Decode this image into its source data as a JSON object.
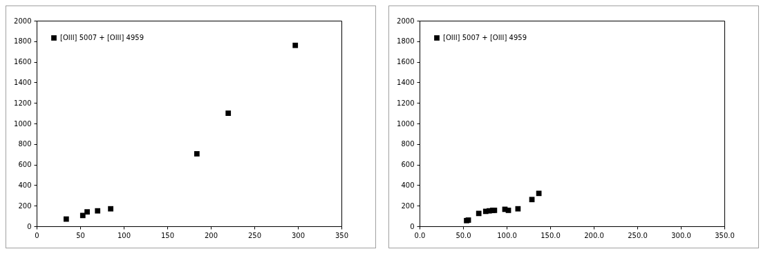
{
  "chart_data": [
    {
      "type": "scatter",
      "marker": "square",
      "legend": "top left",
      "grid": false,
      "xlim": [
        0,
        350
      ],
      "xticks": [
        0,
        50,
        100,
        150,
        200,
        250,
        300,
        350
      ],
      "ylim": [
        0,
        2000
      ],
      "yticks": [
        0,
        200,
        400,
        600,
        800,
        1000,
        1200,
        1400,
        1600,
        1800,
        2000
      ],
      "series": [
        {
          "name": "[OIII] 5007 + [OIII] 4959",
          "color": "#000000",
          "x": [
            34,
            53,
            58,
            70,
            85,
            184,
            220,
            297
          ],
          "values": [
            70,
            105,
            140,
            150,
            170,
            705,
            1100,
            1760
          ]
        }
      ]
    },
    {
      "type": "scatter",
      "marker": "square",
      "legend": "top left",
      "grid": false,
      "xlim": [
        0,
        350
      ],
      "xticks": [
        {
          "value": 0,
          "label": "0.0"
        },
        {
          "value": 50,
          "label": "50.0"
        },
        {
          "value": 100,
          "label": "100.0"
        },
        {
          "value": 150,
          "label": "150.0"
        },
        {
          "value": 200,
          "label": "200.0"
        },
        {
          "value": 250,
          "label": "250.0"
        },
        {
          "value": 300,
          "label": "300.0"
        },
        {
          "value": 350,
          "label": "350.0"
        }
      ],
      "ylim": [
        0,
        2000
      ],
      "yticks": [
        0,
        200,
        400,
        600,
        800,
        1000,
        1200,
        1400,
        1600,
        1800,
        2000
      ],
      "series": [
        {
          "name": "[OIII] 5007 + [OIII] 4959",
          "color": "#000000",
          "x": [
            54,
            56,
            68,
            76,
            80,
            84,
            86,
            98,
            102,
            113,
            129,
            137
          ],
          "values": [
            55,
            60,
            125,
            145,
            150,
            155,
            155,
            165,
            155,
            170,
            260,
            320
          ]
        }
      ]
    }
  ]
}
